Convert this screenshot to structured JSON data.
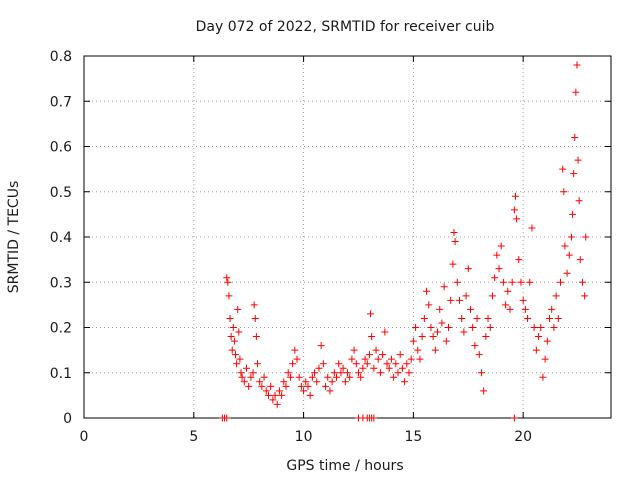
{
  "chart_data": {
    "type": "scatter",
    "title": "Day 072 of 2022, SRMTID for receiver cuib",
    "xlabel": "GPS time / hours",
    "ylabel": "SRMTID / TECUs",
    "xlim": [
      0,
      24
    ],
    "ylim": [
      0,
      0.8
    ],
    "xticks": [
      0,
      5,
      10,
      15,
      20
    ],
    "yticks": [
      0,
      0.1,
      0.2,
      0.3,
      0.4,
      0.5,
      0.6,
      0.7,
      0.8
    ],
    "xtick_labels": [
      "0",
      "5",
      "10",
      "15",
      "20"
    ],
    "ytick_labels": [
      "0",
      "0.1",
      "0.2",
      "0.3",
      "0.4",
      "0.5",
      "0.6",
      "0.7",
      "0.8"
    ],
    "grid": true,
    "marker": "+",
    "series": [
      {
        "name": "SRMTID",
        "color": "#ff0000",
        "points": [
          [
            6.3,
            0.0
          ],
          [
            6.4,
            0.0
          ],
          [
            6.5,
            0.0
          ],
          [
            6.5,
            0.31
          ],
          [
            6.55,
            0.3
          ],
          [
            6.6,
            0.27
          ],
          [
            6.65,
            0.22
          ],
          [
            6.7,
            0.18
          ],
          [
            6.75,
            0.15
          ],
          [
            6.8,
            0.2
          ],
          [
            6.85,
            0.17
          ],
          [
            6.9,
            0.14
          ],
          [
            6.95,
            0.12
          ],
          [
            7.0,
            0.24
          ],
          [
            7.05,
            0.19
          ],
          [
            7.1,
            0.13
          ],
          [
            7.15,
            0.1
          ],
          [
            7.2,
            0.09
          ],
          [
            7.3,
            0.08
          ],
          [
            7.4,
            0.11
          ],
          [
            7.5,
            0.07
          ],
          [
            7.6,
            0.09
          ],
          [
            7.7,
            0.1
          ],
          [
            7.75,
            0.25
          ],
          [
            7.8,
            0.22
          ],
          [
            7.85,
            0.18
          ],
          [
            7.9,
            0.12
          ],
          [
            8.0,
            0.08
          ],
          [
            8.1,
            0.07
          ],
          [
            8.2,
            0.09
          ],
          [
            8.3,
            0.06
          ],
          [
            8.4,
            0.05
          ],
          [
            8.5,
            0.07
          ],
          [
            8.6,
            0.04
          ],
          [
            8.7,
            0.05
          ],
          [
            8.8,
            0.03
          ],
          [
            8.9,
            0.06
          ],
          [
            9.0,
            0.05
          ],
          [
            9.1,
            0.08
          ],
          [
            9.2,
            0.07
          ],
          [
            9.3,
            0.1
          ],
          [
            9.4,
            0.09
          ],
          [
            9.5,
            0.12
          ],
          [
            9.6,
            0.15
          ],
          [
            9.7,
            0.13
          ],
          [
            9.8,
            0.09
          ],
          [
            9.9,
            0.07
          ],
          [
            10.0,
            0.06
          ],
          [
            10.1,
            0.08
          ],
          [
            10.2,
            0.07
          ],
          [
            10.3,
            0.05
          ],
          [
            10.4,
            0.09
          ],
          [
            10.5,
            0.1
          ],
          [
            10.6,
            0.08
          ],
          [
            10.7,
            0.11
          ],
          [
            10.8,
            0.16
          ],
          [
            10.9,
            0.12
          ],
          [
            11.0,
            0.07
          ],
          [
            11.1,
            0.09
          ],
          [
            11.2,
            0.06
          ],
          [
            11.3,
            0.08
          ],
          [
            11.4,
            0.1
          ],
          [
            11.5,
            0.09
          ],
          [
            11.6,
            0.12
          ],
          [
            11.7,
            0.1
          ],
          [
            11.8,
            0.11
          ],
          [
            11.9,
            0.08
          ],
          [
            12.0,
            0.1
          ],
          [
            12.1,
            0.09
          ],
          [
            12.2,
            0.13
          ],
          [
            12.3,
            0.15
          ],
          [
            12.4,
            0.12
          ],
          [
            12.5,
            0.1
          ],
          [
            12.6,
            0.09
          ],
          [
            12.7,
            0.11
          ],
          [
            12.8,
            0.13
          ],
          [
            12.9,
            0.12
          ],
          [
            13.0,
            0.14
          ],
          [
            12.5,
            0.0
          ],
          [
            12.7,
            0.0
          ],
          [
            12.9,
            0.0
          ],
          [
            13.0,
            0.0
          ],
          [
            13.1,
            0.0
          ],
          [
            13.2,
            0.0
          ],
          [
            13.05,
            0.23
          ],
          [
            13.1,
            0.18
          ],
          [
            13.2,
            0.11
          ],
          [
            13.3,
            0.15
          ],
          [
            13.4,
            0.13
          ],
          [
            13.5,
            0.1
          ],
          [
            13.6,
            0.14
          ],
          [
            13.7,
            0.19
          ],
          [
            13.8,
            0.12
          ],
          [
            13.9,
            0.11
          ],
          [
            14.0,
            0.13
          ],
          [
            14.1,
            0.09
          ],
          [
            14.2,
            0.12
          ],
          [
            14.3,
            0.1
          ],
          [
            14.4,
            0.14
          ],
          [
            14.5,
            0.11
          ],
          [
            14.6,
            0.08
          ],
          [
            14.7,
            0.12
          ],
          [
            14.8,
            0.1
          ],
          [
            14.9,
            0.13
          ],
          [
            15.0,
            0.17
          ],
          [
            15.1,
            0.2
          ],
          [
            15.2,
            0.15
          ],
          [
            15.3,
            0.13
          ],
          [
            15.4,
            0.18
          ],
          [
            15.5,
            0.22
          ],
          [
            15.6,
            0.28
          ],
          [
            15.7,
            0.25
          ],
          [
            15.8,
            0.2
          ],
          [
            15.9,
            0.18
          ],
          [
            16.0,
            0.15
          ],
          [
            16.1,
            0.19
          ],
          [
            16.2,
            0.24
          ],
          [
            16.3,
            0.21
          ],
          [
            16.4,
            0.29
          ],
          [
            16.5,
            0.17
          ],
          [
            16.6,
            0.2
          ],
          [
            16.7,
            0.26
          ],
          [
            16.8,
            0.34
          ],
          [
            16.85,
            0.41
          ],
          [
            16.9,
            0.39
          ],
          [
            17.0,
            0.3
          ],
          [
            17.1,
            0.26
          ],
          [
            17.2,
            0.22
          ],
          [
            17.3,
            0.19
          ],
          [
            17.4,
            0.27
          ],
          [
            17.5,
            0.33
          ],
          [
            17.6,
            0.24
          ],
          [
            17.7,
            0.2
          ],
          [
            17.8,
            0.16
          ],
          [
            17.9,
            0.22
          ],
          [
            18.0,
            0.14
          ],
          [
            18.1,
            0.1
          ],
          [
            18.2,
            0.06
          ],
          [
            18.3,
            0.18
          ],
          [
            18.4,
            0.22
          ],
          [
            18.5,
            0.2
          ],
          [
            18.6,
            0.27
          ],
          [
            18.7,
            0.31
          ],
          [
            18.8,
            0.36
          ],
          [
            18.9,
            0.33
          ],
          [
            19.0,
            0.38
          ],
          [
            19.1,
            0.3
          ],
          [
            19.2,
            0.25
          ],
          [
            19.3,
            0.28
          ],
          [
            19.4,
            0.24
          ],
          [
            19.5,
            0.3
          ],
          [
            19.6,
            0.46
          ],
          [
            19.65,
            0.49
          ],
          [
            19.7,
            0.44
          ],
          [
            19.6,
            0.0
          ],
          [
            19.8,
            0.35
          ],
          [
            19.9,
            0.3
          ],
          [
            20.0,
            0.26
          ],
          [
            20.1,
            0.24
          ],
          [
            20.2,
            0.22
          ],
          [
            20.3,
            0.3
          ],
          [
            20.4,
            0.42
          ],
          [
            20.5,
            0.2
          ],
          [
            20.6,
            0.15
          ],
          [
            20.7,
            0.18
          ],
          [
            20.8,
            0.2
          ],
          [
            20.9,
            0.09
          ],
          [
            21.0,
            0.13
          ],
          [
            21.1,
            0.17
          ],
          [
            21.2,
            0.22
          ],
          [
            21.3,
            0.24
          ],
          [
            21.4,
            0.2
          ],
          [
            21.5,
            0.27
          ],
          [
            21.6,
            0.22
          ],
          [
            21.7,
            0.3
          ],
          [
            21.8,
            0.55
          ],
          [
            21.85,
            0.5
          ],
          [
            21.9,
            0.38
          ],
          [
            22.0,
            0.32
          ],
          [
            22.1,
            0.36
          ],
          [
            22.2,
            0.4
          ],
          [
            22.25,
            0.45
          ],
          [
            22.3,
            0.54
          ],
          [
            22.35,
            0.62
          ],
          [
            22.4,
            0.72
          ],
          [
            22.45,
            0.78
          ],
          [
            22.5,
            0.57
          ],
          [
            22.55,
            0.48
          ],
          [
            22.6,
            0.35
          ],
          [
            22.7,
            0.3
          ],
          [
            22.8,
            0.27
          ],
          [
            22.85,
            0.4
          ]
        ]
      }
    ]
  }
}
